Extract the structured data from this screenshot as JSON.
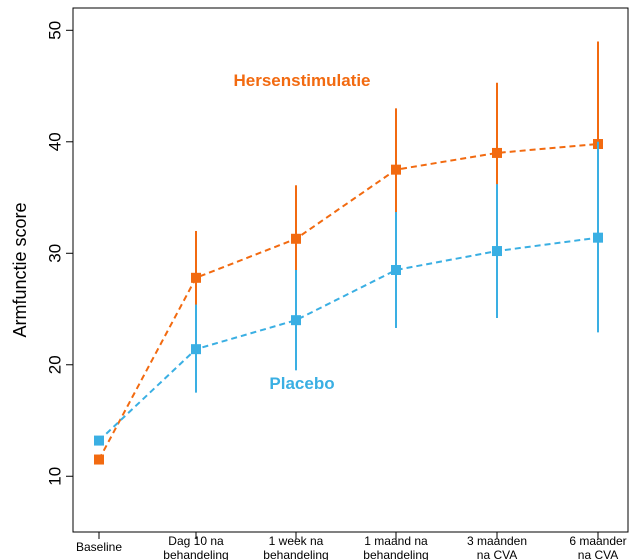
{
  "chart_data": {
    "type": "line",
    "ylabel": "Armfunctie score",
    "ylim": [
      5,
      52
    ],
    "yticks": [
      10,
      20,
      30,
      40,
      50
    ],
    "grid": false,
    "x": [
      [
        "Baseline"
      ],
      [
        "Dag 10 na",
        "behandeling"
      ],
      [
        "1 week na",
        "behandeling"
      ],
      [
        "1 maand na",
        "behandeling"
      ],
      [
        "3 maanden",
        "na CVA"
      ],
      [
        "6 maander",
        "na CVA"
      ]
    ],
    "series": [
      {
        "name": "Hersenstimulatie",
        "color": "#f26a10",
        "values": [
          11.5,
          27.8,
          31.3,
          37.5,
          39.0,
          39.8
        ],
        "error_low": [
          null,
          23.6,
          26.4,
          31.9,
          32.8,
          30.8
        ],
        "error_high": [
          null,
          32.0,
          36.1,
          43.0,
          45.3,
          49.0
        ]
      },
      {
        "name": "Placebo",
        "color": "#3aafe3",
        "values": [
          13.2,
          21.4,
          24.0,
          28.5,
          30.2,
          31.4
        ],
        "error_low": [
          null,
          17.5,
          19.5,
          23.3,
          24.2,
          22.9
        ],
        "error_high": [
          null,
          25.4,
          28.5,
          33.7,
          36.2,
          40.0
        ]
      }
    ]
  }
}
